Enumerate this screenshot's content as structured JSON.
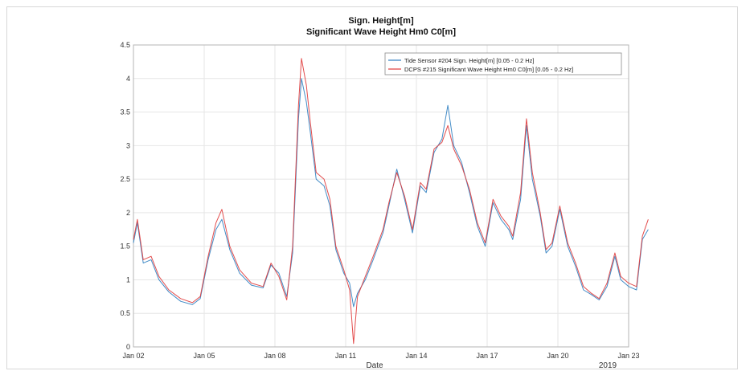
{
  "chart_data": {
    "type": "line",
    "title": "Sign. Height[m]",
    "subtitle": "Significant Wave Height Hm0 C0[m]",
    "xlabel": "Date",
    "year_label": "2019",
    "ylabel": "",
    "xlim": [
      "2019-01-02",
      "2019-01-23"
    ],
    "ylim": [
      0,
      4.5
    ],
    "x_ticks": [
      "Jan 02",
      "Jan 05",
      "Jan 08",
      "Jan 11",
      "Jan 14",
      "Jan 17",
      "Jan 20",
      "Jan 23"
    ],
    "y_ticks": [
      "0",
      "0.5",
      "1",
      "1.5",
      "2",
      "2.5",
      "3",
      "3.5",
      "4",
      "4.5"
    ],
    "grid": true,
    "legend_position": "top-right",
    "series": [
      {
        "name": "Tide Sensor #204 Sign. Height[m] [0.05 - 0.2 Hz]",
        "color": "#2f7fc1",
        "points": [
          [
            "2019-01-02 00:00",
            1.55
          ],
          [
            "2019-01-02 04:00",
            1.85
          ],
          [
            "2019-01-02 10:00",
            1.25
          ],
          [
            "2019-01-02 18:00",
            1.3
          ],
          [
            "2019-01-03 02:00",
            1.0
          ],
          [
            "2019-01-03 12:00",
            0.82
          ],
          [
            "2019-01-04 00:00",
            0.68
          ],
          [
            "2019-01-04 12:00",
            0.63
          ],
          [
            "2019-01-04 20:00",
            0.72
          ],
          [
            "2019-01-05 04:00",
            1.3
          ],
          [
            "2019-01-05 12:00",
            1.75
          ],
          [
            "2019-01-05 18:00",
            1.9
          ],
          [
            "2019-01-06 02:00",
            1.45
          ],
          [
            "2019-01-06 12:00",
            1.1
          ],
          [
            "2019-01-07 00:00",
            0.92
          ],
          [
            "2019-01-07 12:00",
            0.88
          ],
          [
            "2019-01-07 20:00",
            1.22
          ],
          [
            "2019-01-08 04:00",
            1.1
          ],
          [
            "2019-01-08 12:00",
            0.75
          ],
          [
            "2019-01-08 18:00",
            1.4
          ],
          [
            "2019-01-09 00:00",
            3.4
          ],
          [
            "2019-01-09 03:00",
            4.0
          ],
          [
            "2019-01-09 08:00",
            3.65
          ],
          [
            "2019-01-09 12:00",
            3.2
          ],
          [
            "2019-01-09 18:00",
            2.5
          ],
          [
            "2019-01-10 02:00",
            2.4
          ],
          [
            "2019-01-10 08:00",
            2.1
          ],
          [
            "2019-01-10 14:00",
            1.45
          ],
          [
            "2019-01-10 22:00",
            1.1
          ],
          [
            "2019-01-11 04:00",
            0.95
          ],
          [
            "2019-01-11 08:00",
            0.6
          ],
          [
            "2019-01-11 12:00",
            0.8
          ],
          [
            "2019-01-11 20:00",
            1.0
          ],
          [
            "2019-01-12 04:00",
            1.3
          ],
          [
            "2019-01-12 14:00",
            1.7
          ],
          [
            "2019-01-12 20:00",
            2.1
          ],
          [
            "2019-01-13 04:00",
            2.65
          ],
          [
            "2019-01-13 12:00",
            2.2
          ],
          [
            "2019-01-13 20:00",
            1.7
          ],
          [
            "2019-01-14 04:00",
            2.4
          ],
          [
            "2019-01-14 10:00",
            2.3
          ],
          [
            "2019-01-14 18:00",
            2.9
          ],
          [
            "2019-01-15 02:00",
            3.1
          ],
          [
            "2019-01-15 08:00",
            3.6
          ],
          [
            "2019-01-15 14:00",
            3.0
          ],
          [
            "2019-01-15 22:00",
            2.75
          ],
          [
            "2019-01-16 06:00",
            2.3
          ],
          [
            "2019-01-16 14:00",
            1.8
          ],
          [
            "2019-01-16 22:00",
            1.5
          ],
          [
            "2019-01-17 06:00",
            2.15
          ],
          [
            "2019-01-17 14:00",
            1.9
          ],
          [
            "2019-01-17 22:00",
            1.75
          ],
          [
            "2019-01-18 02:00",
            1.6
          ],
          [
            "2019-01-18 10:00",
            2.2
          ],
          [
            "2019-01-18 16:00",
            3.3
          ],
          [
            "2019-01-18 22:00",
            2.5
          ],
          [
            "2019-01-19 06:00",
            1.95
          ],
          [
            "2019-01-19 12:00",
            1.4
          ],
          [
            "2019-01-19 18:00",
            1.5
          ],
          [
            "2019-01-20 02:00",
            2.05
          ],
          [
            "2019-01-20 10:00",
            1.5
          ],
          [
            "2019-01-20 18:00",
            1.2
          ],
          [
            "2019-01-21 02:00",
            0.85
          ],
          [
            "2019-01-21 10:00",
            0.78
          ],
          [
            "2019-01-21 18:00",
            0.7
          ],
          [
            "2019-01-22 02:00",
            0.9
          ],
          [
            "2019-01-22 10:00",
            1.35
          ],
          [
            "2019-01-22 16:00",
            1.0
          ],
          [
            "2019-01-23 00:00",
            0.9
          ],
          [
            "2019-01-23 08:00",
            0.85
          ],
          [
            "2019-01-23 14:00",
            1.6
          ],
          [
            "2019-01-23 20:00",
            1.75
          ]
        ]
      },
      {
        "name": "DCPS #215 Significant Wave Height Hm0 C0[m] [0.05 - 0.2 Hz]",
        "color": "#e03a3a",
        "points": [
          [
            "2019-01-02 00:00",
            1.6
          ],
          [
            "2019-01-02 04:00",
            1.9
          ],
          [
            "2019-01-02 10:00",
            1.3
          ],
          [
            "2019-01-02 18:00",
            1.35
          ],
          [
            "2019-01-03 02:00",
            1.05
          ],
          [
            "2019-01-03 12:00",
            0.85
          ],
          [
            "2019-01-04 00:00",
            0.72
          ],
          [
            "2019-01-04 12:00",
            0.66
          ],
          [
            "2019-01-04 20:00",
            0.75
          ],
          [
            "2019-01-05 04:00",
            1.35
          ],
          [
            "2019-01-05 12:00",
            1.85
          ],
          [
            "2019-01-05 18:00",
            2.05
          ],
          [
            "2019-01-06 02:00",
            1.5
          ],
          [
            "2019-01-06 12:00",
            1.15
          ],
          [
            "2019-01-07 00:00",
            0.95
          ],
          [
            "2019-01-07 12:00",
            0.9
          ],
          [
            "2019-01-07 20:00",
            1.25
          ],
          [
            "2019-01-08 04:00",
            1.05
          ],
          [
            "2019-01-08 12:00",
            0.7
          ],
          [
            "2019-01-08 18:00",
            1.5
          ],
          [
            "2019-01-09 00:00",
            3.6
          ],
          [
            "2019-01-09 03:00",
            4.3
          ],
          [
            "2019-01-09 08:00",
            3.9
          ],
          [
            "2019-01-09 12:00",
            3.35
          ],
          [
            "2019-01-09 18:00",
            2.6
          ],
          [
            "2019-01-10 02:00",
            2.5
          ],
          [
            "2019-01-10 08:00",
            2.2
          ],
          [
            "2019-01-10 14:00",
            1.5
          ],
          [
            "2019-01-10 22:00",
            1.15
          ],
          [
            "2019-01-11 04:00",
            0.85
          ],
          [
            "2019-01-11 08:00",
            0.05
          ],
          [
            "2019-01-11 12:00",
            0.75
          ],
          [
            "2019-01-11 20:00",
            1.05
          ],
          [
            "2019-01-12 04:00",
            1.35
          ],
          [
            "2019-01-12 14:00",
            1.75
          ],
          [
            "2019-01-12 20:00",
            2.15
          ],
          [
            "2019-01-13 04:00",
            2.6
          ],
          [
            "2019-01-13 12:00",
            2.25
          ],
          [
            "2019-01-13 20:00",
            1.75
          ],
          [
            "2019-01-14 04:00",
            2.45
          ],
          [
            "2019-01-14 10:00",
            2.35
          ],
          [
            "2019-01-14 18:00",
            2.95
          ],
          [
            "2019-01-15 02:00",
            3.05
          ],
          [
            "2019-01-15 08:00",
            3.3
          ],
          [
            "2019-01-15 14:00",
            2.95
          ],
          [
            "2019-01-15 22:00",
            2.7
          ],
          [
            "2019-01-16 06:00",
            2.35
          ],
          [
            "2019-01-16 14:00",
            1.85
          ],
          [
            "2019-01-16 22:00",
            1.55
          ],
          [
            "2019-01-17 06:00",
            2.2
          ],
          [
            "2019-01-17 14:00",
            1.95
          ],
          [
            "2019-01-17 22:00",
            1.8
          ],
          [
            "2019-01-18 02:00",
            1.65
          ],
          [
            "2019-01-18 10:00",
            2.3
          ],
          [
            "2019-01-18 16:00",
            3.4
          ],
          [
            "2019-01-18 22:00",
            2.6
          ],
          [
            "2019-01-19 06:00",
            2.0
          ],
          [
            "2019-01-19 12:00",
            1.45
          ],
          [
            "2019-01-19 18:00",
            1.55
          ],
          [
            "2019-01-20 02:00",
            2.1
          ],
          [
            "2019-01-20 10:00",
            1.55
          ],
          [
            "2019-01-20 18:00",
            1.25
          ],
          [
            "2019-01-21 02:00",
            0.9
          ],
          [
            "2019-01-21 10:00",
            0.8
          ],
          [
            "2019-01-21 18:00",
            0.72
          ],
          [
            "2019-01-22 02:00",
            0.95
          ],
          [
            "2019-01-22 10:00",
            1.4
          ],
          [
            "2019-01-22 16:00",
            1.05
          ],
          [
            "2019-01-23 00:00",
            0.95
          ],
          [
            "2019-01-23 08:00",
            0.9
          ],
          [
            "2019-01-23 14:00",
            1.65
          ],
          [
            "2019-01-23 20:00",
            1.9
          ]
        ]
      }
    ]
  }
}
